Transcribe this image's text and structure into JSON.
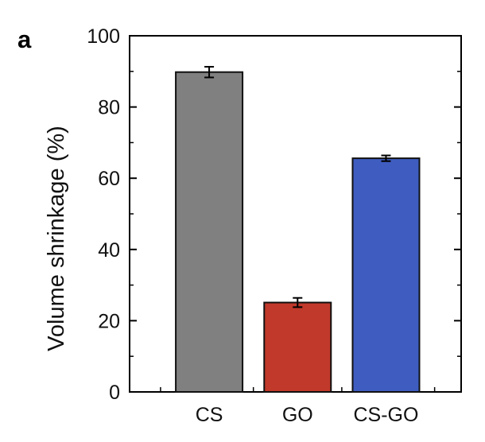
{
  "panel_label": "a",
  "chart_data": {
    "type": "bar",
    "title": "",
    "xlabel": "",
    "ylabel": "Volume shrinkage (%)",
    "ylim": [
      0,
      100
    ],
    "yticks": [
      0,
      20,
      40,
      60,
      80,
      100
    ],
    "grid": false,
    "legend": "none",
    "categories": [
      "CS",
      "GO",
      "CS-GO"
    ],
    "values": [
      89.8,
      25.1,
      65.6
    ],
    "errors": [
      1.5,
      1.3,
      0.8
    ],
    "colors": [
      "#808080",
      "#C0392B",
      "#3F5DC1"
    ]
  }
}
